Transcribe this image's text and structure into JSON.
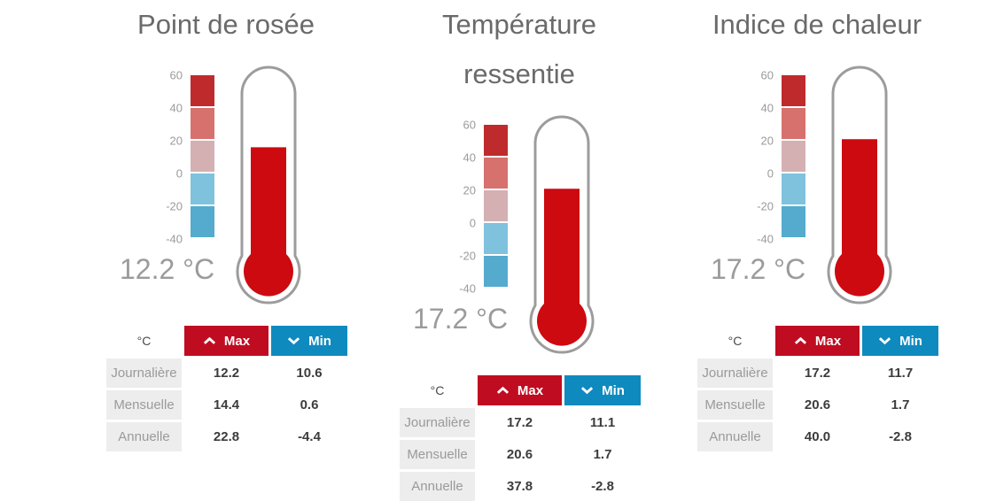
{
  "chart_data": [
    {
      "type": "gauge",
      "title": "Point de rosée",
      "unit": "°C",
      "current_display": "12.2 °C",
      "gauge_fill_level": 16,
      "scale": {
        "min": -40,
        "max": 60,
        "ticks": [
          60,
          40,
          20,
          0,
          -20,
          -40
        ]
      },
      "table": {
        "columns": [
          "Max",
          "Min"
        ],
        "rows": [
          [
            "Journalière",
            12.2,
            10.6
          ],
          [
            "Mensuelle",
            14.4,
            0.6
          ],
          [
            "Annuelle",
            22.8,
            -4.4
          ]
        ]
      }
    },
    {
      "type": "gauge",
      "title": "Température ressentie",
      "unit": "°C",
      "current_display": "17.2 °C",
      "gauge_fill_level": 21,
      "scale": {
        "min": -40,
        "max": 60,
        "ticks": [
          60,
          40,
          20,
          0,
          -20,
          -40
        ]
      },
      "table": {
        "columns": [
          "Max",
          "Min"
        ],
        "rows": [
          [
            "Journalière",
            17.2,
            11.1
          ],
          [
            "Mensuelle",
            20.6,
            1.7
          ],
          [
            "Annuelle",
            37.8,
            -2.8
          ]
        ]
      }
    },
    {
      "type": "gauge",
      "title": "Indice de chaleur",
      "unit": "°C",
      "current_display": "17.2 °C",
      "gauge_fill_level": 21,
      "scale": {
        "min": -40,
        "max": 60,
        "ticks": [
          60,
          40,
          20,
          0,
          -20,
          -40
        ]
      },
      "table": {
        "columns": [
          "Max",
          "Min"
        ],
        "rows": [
          [
            "Journalière",
            17.2,
            11.7
          ],
          [
            "Mensuelle",
            20.6,
            1.7
          ],
          [
            "Annuelle",
            40.0,
            -2.8
          ]
        ]
      }
    }
  ],
  "shared": {
    "unit_header": "°C",
    "max_label": "Max",
    "min_label": "Min",
    "scale": {
      "max": 60,
      "min": -40,
      "ticks": [
        60,
        40,
        20,
        0,
        -20,
        -40
      ],
      "segment_colors": [
        "#BF2B2D",
        "#D6716E",
        "#D4B0B3",
        "#7FC2DE",
        "#54ABCD"
      ]
    },
    "colors": {
      "fill_red": "#CC0A10",
      "outline_gray": "#9C9C9C",
      "tick_gray": "#9B9B9B",
      "max_red": "#C00C21",
      "min_blue": "#0F8ABF",
      "title_gray": "#6A6A6A",
      "value_gray": "#9B9B9B",
      "row_label_bg": "#EDEDED",
      "row_label_text": "#9A9A9A",
      "cell_value_text": "#3C3C3C"
    }
  },
  "widgets": [
    {
      "title": "Point de rosée",
      "current": "12.2 °C",
      "fill_level": 16,
      "table": {
        "rows": [
          {
            "label": "Journalière",
            "max": "12.2",
            "min": "10.6"
          },
          {
            "label": "Mensuelle",
            "max": "14.4",
            "min": "0.6"
          },
          {
            "label": "Annuelle",
            "max": "22.8",
            "min": "-4.4"
          }
        ]
      }
    },
    {
      "title": "Température ressentie",
      "current": "17.2 °C",
      "fill_level": 21,
      "table": {
        "rows": [
          {
            "label": "Journalière",
            "max": "17.2",
            "min": "11.1"
          },
          {
            "label": "Mensuelle",
            "max": "20.6",
            "min": "1.7"
          },
          {
            "label": "Annuelle",
            "max": "37.8",
            "min": "-2.8"
          }
        ]
      }
    },
    {
      "title": "Indice de chaleur",
      "current": "17.2 °C",
      "fill_level": 21,
      "table": {
        "rows": [
          {
            "label": "Journalière",
            "max": "17.2",
            "min": "11.7"
          },
          {
            "label": "Mensuelle",
            "max": "20.6",
            "min": "1.7"
          },
          {
            "label": "Annuelle",
            "max": "40.0",
            "min": "-2.8"
          }
        ]
      }
    }
  ]
}
